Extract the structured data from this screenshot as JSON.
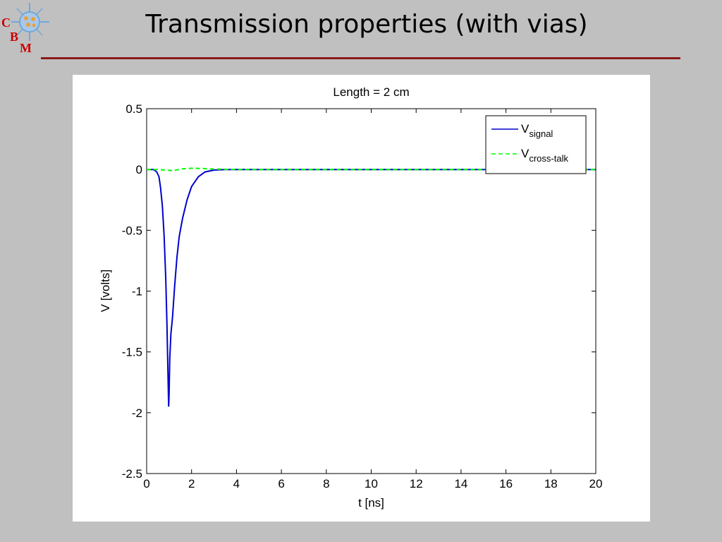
{
  "slide": {
    "title": "Transmission properties (with vias)",
    "logo": {
      "letters": [
        "C",
        "B",
        "M"
      ]
    }
  },
  "colors": {
    "background": "#c0c0c0",
    "rule": "#8b1a1a",
    "signal": "#0000cc",
    "crosstalk": "#00ff00",
    "logo_letters": "#cc0000"
  },
  "chart_data": {
    "type": "line",
    "title": "Length = 2 cm",
    "xlabel": "t [ns]",
    "ylabel": "V [volts]",
    "xlim": [
      0,
      20
    ],
    "ylim": [
      -2.5,
      0.5
    ],
    "xticks": [
      0,
      2,
      4,
      6,
      8,
      10,
      12,
      14,
      16,
      18,
      20
    ],
    "yticks": [
      0.5,
      0,
      -0.5,
      -1,
      -1.5,
      -2,
      -2.5
    ],
    "grid": false,
    "legend_position": "top-right",
    "series": [
      {
        "name": "V",
        "subscript": "signal",
        "style": "solid",
        "color": "#0000cc",
        "x": [
          0,
          0.3,
          0.45,
          0.55,
          0.62,
          0.7,
          0.78,
          0.85,
          0.9,
          0.95,
          0.98,
          1.0,
          1.03,
          1.08,
          1.15,
          1.25,
          1.35,
          1.45,
          1.6,
          1.8,
          2.0,
          2.3,
          2.6,
          3.0,
          3.5,
          4.0,
          20
        ],
        "y": [
          0,
          0,
          -0.02,
          -0.06,
          -0.15,
          -0.3,
          -0.55,
          -0.9,
          -1.25,
          -1.7,
          -1.95,
          -1.85,
          -1.55,
          -1.35,
          -1.22,
          -0.95,
          -0.72,
          -0.55,
          -0.4,
          -0.25,
          -0.14,
          -0.06,
          -0.02,
          -0.005,
          0,
          0,
          0
        ]
      },
      {
        "name": "V",
        "subscript": "cross-talk",
        "style": "dashed",
        "color": "#00ff00",
        "x": [
          0,
          0.5,
          0.9,
          1.1,
          1.3,
          1.6,
          2.0,
          2.5,
          3.0,
          4.0,
          20
        ],
        "y": [
          0,
          0,
          -0.005,
          -0.01,
          -0.005,
          0.005,
          0.01,
          0.008,
          0.003,
          0,
          0
        ]
      }
    ]
  }
}
